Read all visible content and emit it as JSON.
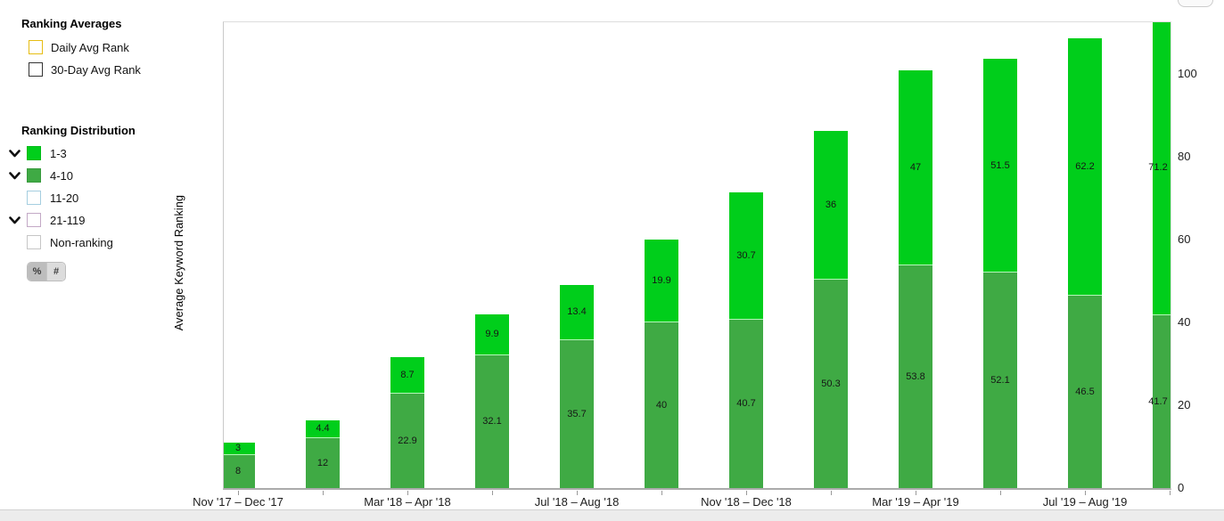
{
  "sidebar": {
    "ranking_averages": {
      "title": "Ranking Averages",
      "items": [
        {
          "label": "Daily Avg Rank",
          "box_border": "#e6bd13",
          "checked": false
        },
        {
          "label": "30-Day Avg Rank",
          "box_border": "#333333",
          "checked": false
        }
      ]
    },
    "ranking_distribution": {
      "title": "Ranking Distribution",
      "items": [
        {
          "label": "1-3",
          "fill": "#00ce1b",
          "border": "#00bb18",
          "chevron": true
        },
        {
          "label": "4-10",
          "fill": "#3faa44",
          "border": "#389a3d",
          "chevron": true
        },
        {
          "label": "11-20",
          "fill": "#ffffff",
          "border": "#a5cee0",
          "chevron": false
        },
        {
          "label": "21-119",
          "fill": "#ffffff",
          "border": "#c3a9c6",
          "chevron": true
        },
        {
          "label": "Non-ranking",
          "fill": "#ffffff",
          "border": "#c6c6c6",
          "chevron": false
        }
      ],
      "unit_toggle": {
        "percent_label": "%",
        "number_label": "#",
        "selected": "%"
      }
    }
  },
  "chart_data": {
    "type": "bar",
    "stacked": true,
    "ylabel": "Average Keyword Ranking",
    "ylim": [
      0,
      112.5
    ],
    "yticks": [
      0,
      20,
      40,
      60,
      80,
      100
    ],
    "grid": false,
    "legend_position": "left-sidebar",
    "bar_count": 12,
    "series": [
      {
        "name": "4-10",
        "color": "#3faa44",
        "values": [
          8,
          12,
          22.9,
          32.1,
          35.7,
          40,
          40.7,
          50.3,
          53.8,
          52.1,
          46.5,
          41.7
        ],
        "labels": [
          "8",
          "12",
          "22.9",
          "32.1",
          "35.7",
          "40",
          "40.7",
          "50.3",
          "53.8",
          "52.1",
          "46.5",
          "41.7"
        ]
      },
      {
        "name": "1-3",
        "color": "#00ce1b",
        "values": [
          3,
          4.4,
          8.7,
          9.9,
          13.4,
          19.9,
          30.7,
          36,
          47,
          51.5,
          62.2,
          71.2
        ],
        "labels": [
          "3",
          "4.4",
          "8.7",
          "9.9",
          "13.4",
          "19.9",
          "30.7",
          "36",
          "47",
          "51.5",
          "62.2",
          "71.2"
        ]
      }
    ],
    "x_tick_labels": [
      "Nov '17 – Dec '17",
      "Mar '18 – Apr '18",
      "Jul '18 – Aug '18",
      "Nov '18 – Dec '18",
      "Mar '19 – Apr '19",
      "Jul '19 – Aug '19"
    ],
    "labeled_bar_indexes": [
      0,
      2,
      4,
      6,
      8,
      10
    ]
  }
}
